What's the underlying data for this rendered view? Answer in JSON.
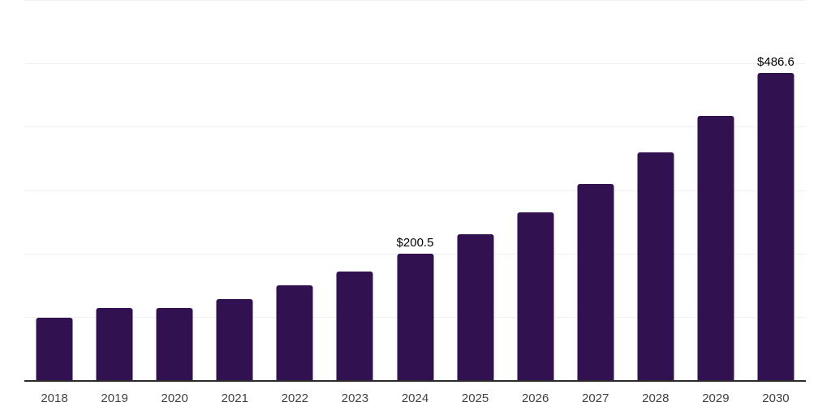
{
  "chart_data": {
    "type": "bar",
    "title": "",
    "xlabel": "",
    "ylabel": "",
    "categories": [
      "2018",
      "2019",
      "2020",
      "2021",
      "2022",
      "2023",
      "2024",
      "2025",
      "2026",
      "2027",
      "2028",
      "2029",
      "2030"
    ],
    "values": [
      99.6,
      114.6,
      115.0,
      129.4,
      150.8,
      172.6,
      200.5,
      231.0,
      266.3,
      310.5,
      360.4,
      418.0,
      486.6
    ],
    "data_labels": [
      null,
      null,
      null,
      null,
      null,
      null,
      "$200.5",
      null,
      null,
      null,
      null,
      null,
      "$486.6"
    ],
    "ylim": [
      0,
      600
    ],
    "gridline_step": 100,
    "grid": true,
    "y_axis_labels_visible": false,
    "legend": "none",
    "currency_prefix": "$"
  },
  "colors": {
    "background": "#ffffff",
    "bar": "#311150",
    "axis_line": "#2b2b2b",
    "gridline": "#f0f0f2",
    "value_label": "#000000",
    "year_label": "#404040"
  }
}
